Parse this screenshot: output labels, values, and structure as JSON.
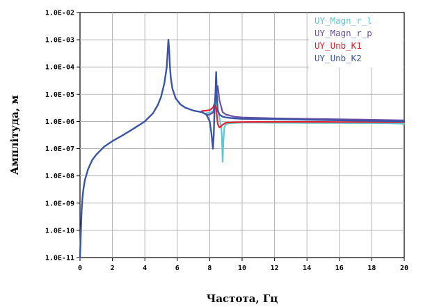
{
  "chart_data": {
    "type": "line",
    "title": "",
    "xlabel": "Частота, Гц",
    "ylabel": "Амплітуда, м",
    "xlim": [
      0,
      20
    ],
    "ylog": true,
    "ylim": [
      1e-11,
      0.01
    ],
    "grid": true,
    "legend_position": "top-right",
    "x_ticks": [
      "0",
      "2",
      "4",
      "6",
      "8",
      "10",
      "12",
      "14",
      "16",
      "18",
      "20"
    ],
    "y_ticks": [
      "1.0E-11",
      "1.0E-10",
      "1.0E-09",
      "1.0E-08",
      "1.0E-07",
      "1.0E-06",
      "1.0E-05",
      "1.0E-04",
      "1.0E-03",
      "1.0E-02"
    ],
    "series": [
      {
        "name": "UY_Magn_r_l",
        "color": "#5bc8d2",
        "x": [
          7.8,
          8.0,
          8.1,
          8.2,
          8.3,
          8.35,
          8.4,
          8.45,
          8.5,
          8.6,
          8.7,
          8.75,
          8.8,
          8.85,
          8.9,
          9.0,
          9.2,
          9.5,
          10,
          11,
          12,
          13,
          14,
          15,
          16,
          17,
          18,
          19,
          20
        ],
        "y": [
          2e-06,
          2.1e-06,
          2.2e-06,
          2.3e-06,
          2.8e-06,
          3.6e-06,
          5.5e-06,
          7e-06,
          3e-06,
          1.4e-06,
          7e-07,
          3e-07,
          3.3e-08,
          2e-07,
          6e-07,
          8e-07,
          8.6e-07,
          8.8e-07,
          9e-07,
          9e-07,
          8.9e-07,
          8.9e-07,
          8.8e-07,
          8.8e-07,
          8.8e-07,
          8.7e-07,
          8.7e-07,
          8.6e-07,
          8.3e-07
        ]
      },
      {
        "name": "UY_Magn_r_p",
        "color": "#6a4fa6",
        "x": [
          7.8,
          8.0,
          8.2,
          8.3,
          8.4,
          8.5,
          8.6,
          8.8,
          9.0,
          9.5,
          10,
          12,
          14,
          16,
          18,
          20
        ],
        "y": [
          1.7e-06,
          1.8e-06,
          2.1e-06,
          3.5e-06,
          1.2e-05,
          2e-05,
          6e-06,
          2.2e-06,
          1.8e-06,
          1.5e-06,
          1.4e-06,
          1.3e-06,
          1.25e-06,
          1.2e-06,
          1.15e-06,
          1.1e-06
        ]
      },
      {
        "name": "UY_Unb_K1",
        "color": "#e8202a",
        "x": [
          7.5,
          7.8,
          8.0,
          8.2,
          8.3,
          8.4,
          8.45,
          8.5,
          8.6,
          8.8,
          9.0,
          9.5,
          10,
          11,
          12,
          13,
          14,
          15,
          16,
          17,
          18,
          19,
          20
        ],
        "y": [
          2.4e-06,
          2.5e-06,
          2.6e-06,
          3.2e-06,
          4.5e-06,
          3e-06,
          1.5e-06,
          8e-07,
          6e-07,
          7.5e-07,
          9e-07,
          9.3e-07,
          9.5e-07,
          9.6e-07,
          9.6e-07,
          9.6e-07,
          9.6e-07,
          9.6e-07,
          9.5e-07,
          9.5e-07,
          9.5e-07,
          9.4e-07,
          9.4e-07
        ]
      },
      {
        "name": "UY_Unb_K2",
        "color": "#3a55a8",
        "x": [
          0.0,
          0.05,
          0.1,
          0.15,
          0.2,
          0.3,
          0.5,
          0.75,
          1.0,
          1.5,
          2.0,
          2.5,
          3.0,
          3.5,
          4.0,
          4.5,
          4.8,
          5.0,
          5.2,
          5.35,
          5.45,
          5.5,
          5.55,
          5.6,
          5.7,
          5.9,
          6.2,
          6.5,
          7.0,
          7.5,
          7.8,
          8.0,
          8.1,
          8.2,
          8.25,
          8.3,
          8.35,
          8.4,
          8.45,
          8.5,
          8.6,
          8.8,
          9.0,
          9.5,
          10,
          12,
          14,
          16,
          18,
          20
        ],
        "y": [
          1e-11,
          8e-11,
          5e-10,
          1.5e-09,
          3e-09,
          7e-09,
          1.8e-08,
          3.8e-08,
          6e-08,
          1.2e-07,
          1.9e-07,
          2.8e-07,
          4.2e-07,
          6.5e-07,
          1e-06,
          2e-06,
          4e-06,
          8e-06,
          2.5e-05,
          0.0001,
          0.001,
          0.0004,
          0.0001,
          4e-05,
          1.6e-05,
          7e-06,
          4.2e-06,
          3.2e-06,
          2.5e-06,
          2.2e-06,
          1.8e-06,
          1e-06,
          4e-07,
          1e-07,
          3e-07,
          3e-06,
          1e-05,
          6.5e-05,
          6e-06,
          2.5e-06,
          1.8e-06,
          1.5e-06,
          1.4e-06,
          1.3e-06,
          1.25e-06,
          1.2e-06,
          1.15e-06,
          1.1e-06,
          1.05e-06,
          1e-06
        ]
      }
    ]
  }
}
